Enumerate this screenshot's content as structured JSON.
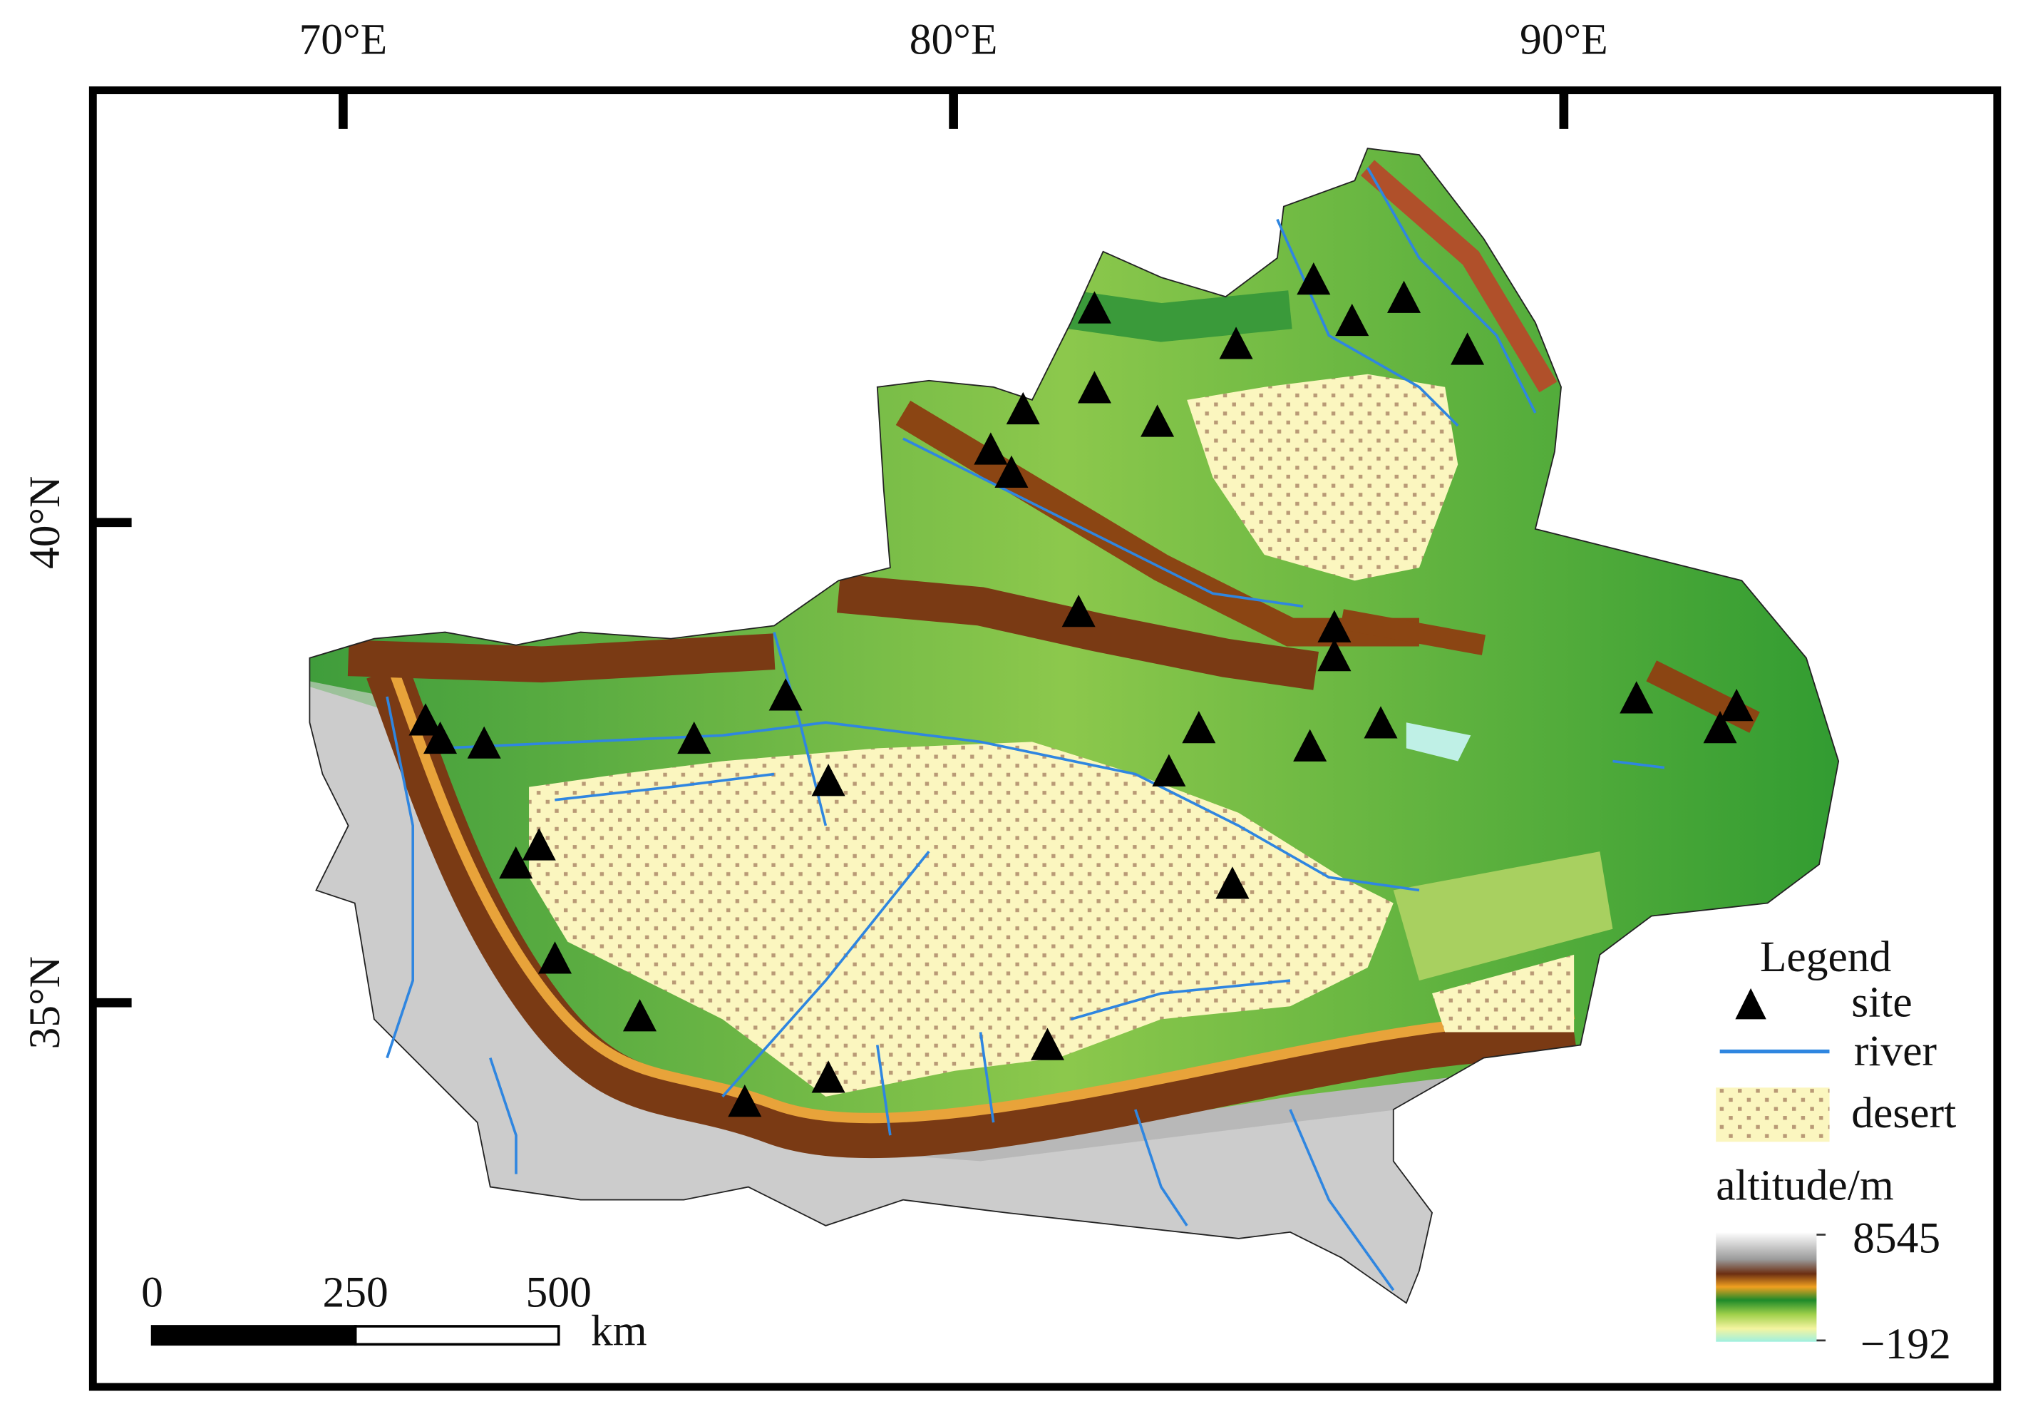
{
  "map": {
    "lon_ticks": [
      {
        "value": 70,
        "label": "70°E"
      },
      {
        "value": 80,
        "label": "80°E"
      },
      {
        "value": 90,
        "label": "90°E"
      }
    ],
    "lat_ticks": [
      {
        "value": 40,
        "label": "40°N"
      },
      {
        "value": 35,
        "label": "35°N"
      }
    ],
    "xlim": [
      65.9,
      97.1
    ],
    "ylim": [
      31.0,
      44.5
    ],
    "sites": {
      "lon": [
        82.31,
        85.9,
        86.53,
        87.38,
        84.63,
        88.42,
        82.31,
        81.14,
        83.34,
        80.61,
        80.95,
        82.05,
        86.24,
        86.24,
        91.19,
        92.83,
        92.56,
        84.02,
        87.0,
        85.84,
        83.53,
        77.25,
        75.75,
        77.95,
        71.35,
        71.59,
        72.31,
        73.21,
        72.83,
        73.47,
        84.57,
        74.86,
        81.54,
        77.95,
        76.58
      ],
      "lat": [
        42.22,
        42.52,
        42.09,
        42.33,
        41.85,
        41.79,
        41.39,
        41.17,
        41.04,
        40.75,
        40.51,
        39.06,
        38.9,
        38.6,
        38.16,
        38.08,
        37.85,
        37.85,
        37.9,
        37.66,
        37.4,
        38.19,
        37.74,
        37.3,
        37.93,
        37.74,
        37.69,
        36.63,
        36.44,
        35.45,
        36.23,
        34.85,
        34.55,
        34.21,
        33.96
      ]
    }
  },
  "legend": {
    "title": "Legend",
    "site": "site",
    "river": "river",
    "desert": "desert",
    "altitude": {
      "title": "altitude/m",
      "max": 8545,
      "min": {
        "value": -192,
        "label": "−192"
      }
    }
  },
  "scale_bar": {
    "ticks": [
      0,
      250,
      500
    ],
    "unit": "km"
  }
}
